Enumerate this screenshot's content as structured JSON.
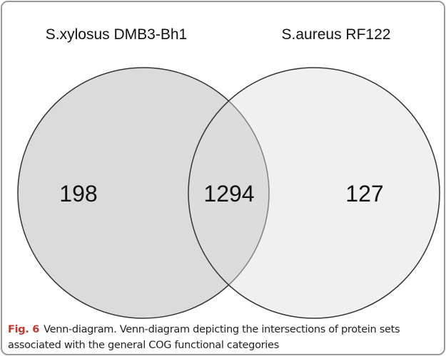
{
  "sets": [
    {
      "label": "S.xylosus DMB3-Bh1",
      "count": "198"
    },
    {
      "label": "S.aureus RF122",
      "count": "127"
    }
  ],
  "intersection": {
    "count": "1294"
  },
  "caption": {
    "label": "Fig. 6",
    "text": "Venn-diagram. Venn-diagram depicting the intersections of protein sets associated with the general COG functional categories"
  }
}
